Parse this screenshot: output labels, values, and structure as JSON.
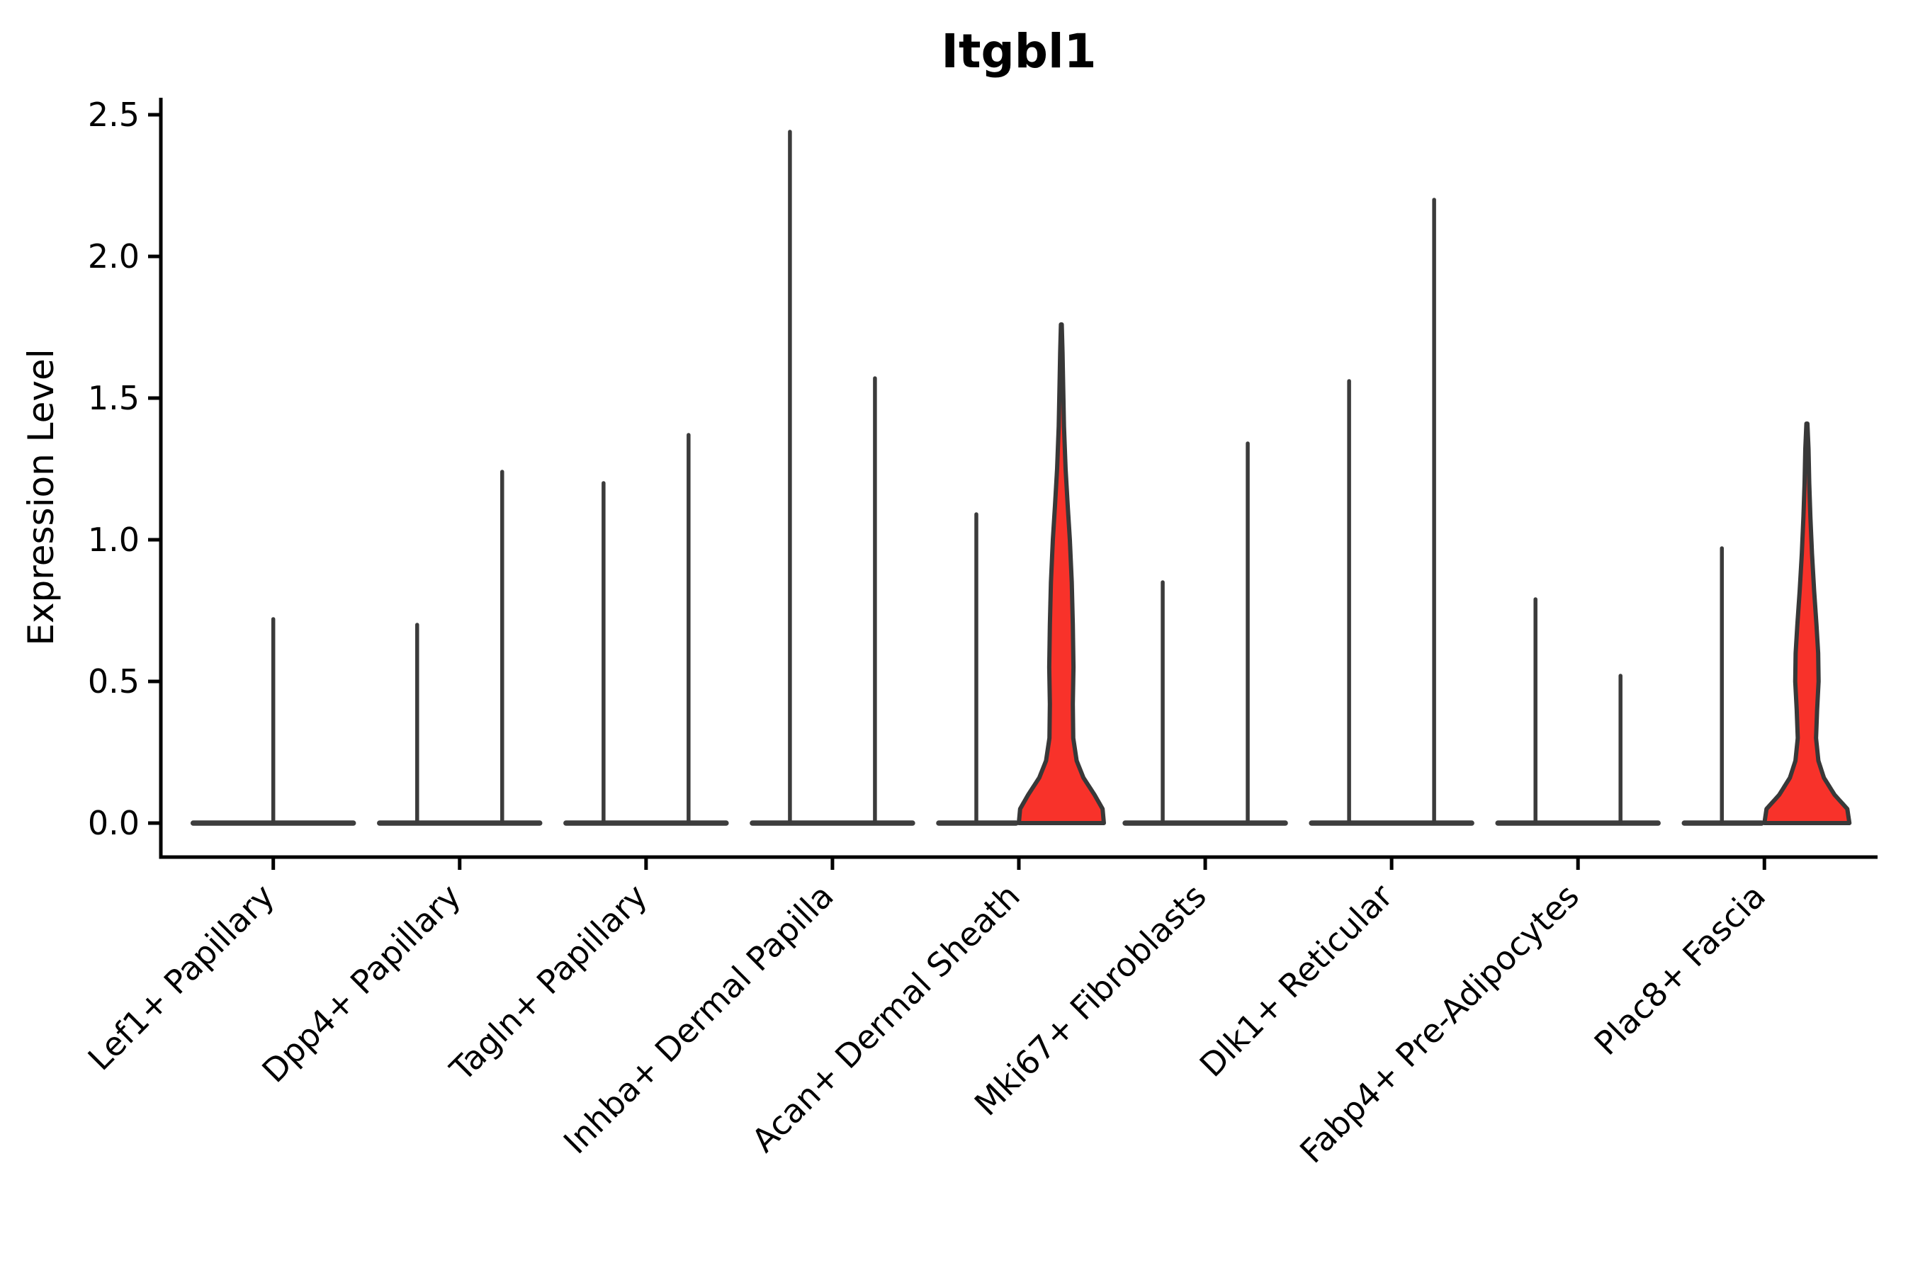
{
  "title": "Itgbl1",
  "ylabel": "Expression Level",
  "chart_data": {
    "type": "violin",
    "title": "Itgbl1",
    "xlabel": "",
    "ylabel": "Expression Level",
    "ylim": [
      0,
      2.5
    ],
    "yticks": [
      0.0,
      0.5,
      1.0,
      1.5,
      2.0,
      2.5
    ],
    "ytick_labels": [
      "0.0",
      "0.5",
      "1.0",
      "1.5",
      "2.0",
      "2.5"
    ],
    "grid": false,
    "legend": "none",
    "categories": [
      {
        "label": "Lef1+ Papillary",
        "violins": [
          {
            "position": "center",
            "max": 0.72,
            "shape": "spike",
            "filled": false,
            "width": 2
          }
        ]
      },
      {
        "label": "Dpp4+ Papillary",
        "violins": [
          {
            "position": "left",
            "max": 0.7,
            "shape": "spike",
            "filled": false,
            "width": 1
          },
          {
            "position": "right",
            "max": 1.24,
            "shape": "spike",
            "filled": false,
            "width": 1
          }
        ]
      },
      {
        "label": "Tagln+ Papillary",
        "violins": [
          {
            "position": "left",
            "max": 1.2,
            "shape": "spike",
            "filled": false,
            "width": 1
          },
          {
            "position": "right",
            "max": 1.37,
            "shape": "spike",
            "filled": false,
            "width": 1
          }
        ]
      },
      {
        "label": "Inhba+ Dermal Papilla",
        "violins": [
          {
            "position": "left",
            "max": 2.44,
            "shape": "spike",
            "filled": false,
            "width": 1
          },
          {
            "position": "right",
            "max": 1.57,
            "shape": "spike",
            "filled": false,
            "width": 1
          }
        ]
      },
      {
        "label": "Acan+ Dermal Sheath",
        "violins": [
          {
            "position": "left",
            "max": 1.09,
            "shape": "spike",
            "filled": false,
            "width": 1
          },
          {
            "position": "right",
            "max": 1.76,
            "shape": "kde",
            "filled": true,
            "width": 1,
            "profile": [
              [
                0,
                1.0
              ],
              [
                0.05,
                0.97
              ],
              [
                0.1,
                0.78
              ],
              [
                0.16,
                0.52
              ],
              [
                0.22,
                0.36
              ],
              [
                0.3,
                0.28
              ],
              [
                0.42,
                0.27
              ],
              [
                0.55,
                0.285
              ],
              [
                0.7,
                0.27
              ],
              [
                0.85,
                0.245
              ],
              [
                1.0,
                0.2
              ],
              [
                1.12,
                0.15
              ],
              [
                1.25,
                0.1
              ],
              [
                1.4,
                0.062
              ],
              [
                1.55,
                0.042
              ],
              [
                1.66,
                0.028
              ],
              [
                1.76,
                0.01
              ]
            ]
          }
        ]
      },
      {
        "label": "Mki67+ Fibroblasts",
        "violins": [
          {
            "position": "left",
            "max": 0.85,
            "shape": "spike",
            "filled": false,
            "width": 1
          },
          {
            "position": "right",
            "max": 1.34,
            "shape": "spike",
            "filled": false,
            "width": 1
          }
        ]
      },
      {
        "label": "Dlk1+ Reticular",
        "violins": [
          {
            "position": "left",
            "max": 1.56,
            "shape": "spike",
            "filled": false,
            "width": 1
          },
          {
            "position": "right",
            "max": 2.2,
            "shape": "spike",
            "filled": false,
            "width": 1
          }
        ]
      },
      {
        "label": "Fabp4+ Pre-Adipocytes",
        "violins": [
          {
            "position": "left",
            "max": 0.79,
            "shape": "spike",
            "filled": false,
            "width": 1
          },
          {
            "position": "right",
            "max": 0.52,
            "shape": "spike",
            "filled": false,
            "width": 1
          }
        ]
      },
      {
        "label": "Plac8+ Fascia",
        "violins": [
          {
            "position": "left",
            "max": 0.97,
            "shape": "spike",
            "filled": false,
            "width": 1
          },
          {
            "position": "right",
            "max": 1.41,
            "shape": "kde",
            "filled": true,
            "width": 1,
            "profile": [
              [
                0,
                1.0
              ],
              [
                0.05,
                0.95
              ],
              [
                0.1,
                0.65
              ],
              [
                0.16,
                0.4
              ],
              [
                0.22,
                0.27
              ],
              [
                0.3,
                0.215
              ],
              [
                0.4,
                0.24
              ],
              [
                0.5,
                0.275
              ],
              [
                0.6,
                0.265
              ],
              [
                0.7,
                0.225
              ],
              [
                0.82,
                0.17
              ],
              [
                0.95,
                0.12
              ],
              [
                1.08,
                0.082
              ],
              [
                1.2,
                0.055
              ],
              [
                1.32,
                0.038
              ],
              [
                1.41,
                0.012
              ]
            ]
          }
        ]
      }
    ],
    "colors": {
      "violin_fill": "#f8322a",
      "violin_outline": "#383838",
      "spike_line": "#3b3b3b",
      "base_bar": "#3d3d3d",
      "axis": "#000000",
      "text": "#000000",
      "background": "#ffffff"
    }
  }
}
